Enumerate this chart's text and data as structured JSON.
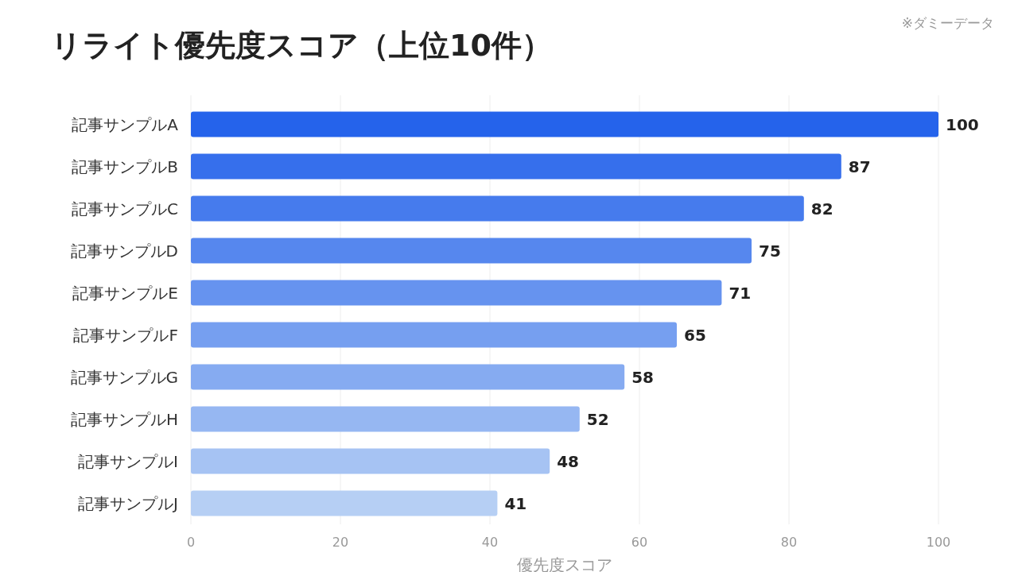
{
  "chart_data": {
    "type": "bar",
    "orientation": "horizontal",
    "title": "リライト優先度スコア（上位10件）",
    "xlabel": "優先度スコア",
    "annotations": [
      "※ダミーデータ"
    ],
    "categories": [
      "記事サンプルA",
      "記事サンプルB",
      "記事サンプルC",
      "記事サンプルD",
      "記事サンプルE",
      "記事サンプルF",
      "記事サンプルG",
      "記事サンプルH",
      "記事サンプルI",
      "記事サンプルJ"
    ],
    "values": [
      100,
      87,
      82,
      75,
      71,
      65,
      58,
      52,
      48,
      41
    ],
    "colors": [
      "#2563eb",
      "#366fec",
      "#467bed",
      "#5687ee",
      "#6693ef",
      "#769ff0",
      "#86abf1",
      "#96b7f2",
      "#a6c3f3",
      "#b6cff4"
    ],
    "xlim": [
      0,
      100
    ],
    "xticks": [
      0,
      20,
      40,
      60,
      80,
      100
    ],
    "grid": "x",
    "data_labels": true
  }
}
